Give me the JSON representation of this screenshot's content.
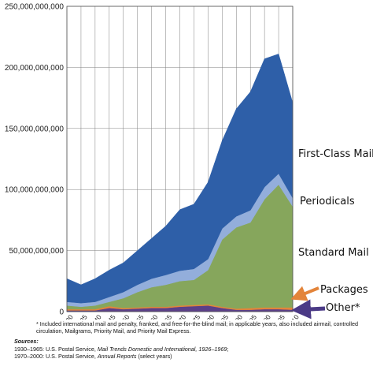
{
  "chart_data": {
    "type": "area",
    "stacked": true,
    "x": [
      1930,
      1935,
      1940,
      1945,
      1950,
      1955,
      1960,
      1965,
      1970,
      1975,
      1980,
      1985,
      1990,
      1995,
      2000,
      2005,
      2010
    ],
    "ylim": [
      0,
      250000000000
    ],
    "yticks": [
      "0",
      "50,000,000,000",
      "100,000,000,000",
      "150,000,000,000",
      "200,000,000,000",
      "250,000,000,000"
    ],
    "yticks_values": [
      0,
      50000000000,
      100000000000,
      150000000000,
      200000000000,
      250000000000
    ],
    "grid": true,
    "series": [
      {
        "name": "Other*",
        "color": "#5b3f88",
        "values": [
          1000000000,
          1000000000,
          1000000000,
          3000000000,
          2000000000,
          2500000000,
          3000000000,
          3000000000,
          4000000000,
          4500000000,
          5000000000,
          3000000000,
          1500000000,
          1500000000,
          2000000000,
          2000000000,
          1500000000
        ]
      },
      {
        "name": "Packages",
        "color": "#e3843a",
        "values": [
          1000000000,
          1000000000,
          1000000000,
          1500000000,
          1000000000,
          1000000000,
          1000000000,
          1000000000,
          1000000000,
          1000000000,
          1000000000,
          1000000000,
          1000000000,
          1500000000,
          1500000000,
          1500000000,
          2000000000
        ]
      },
      {
        "name": "Standard Mail",
        "color": "#86a65c",
        "values": [
          3000000000,
          2000000000,
          3000000000,
          3500000000,
          8000000000,
          12500000000,
          16000000000,
          18000000000,
          20000000000,
          20500000000,
          28000000000,
          55000000000,
          66500000000,
          70000000000,
          88500000000,
          100500000000,
          82500000000
        ]
      },
      {
        "name": "Periodicals",
        "color": "#93aedb",
        "values": [
          3000000000,
          3000000000,
          3000000000,
          4000000000,
          5000000000,
          6000000000,
          7000000000,
          8000000000,
          8500000000,
          9000000000,
          9000000000,
          9000000000,
          9000000000,
          10000000000,
          10000000000,
          9000000000,
          7000000000
        ]
      },
      {
        "name": "First-Class Mail",
        "color": "#2e5fa8",
        "values": [
          19000000000,
          15000000000,
          19000000000,
          22000000000,
          24000000000,
          28000000000,
          33000000000,
          40000000000,
          50000000000,
          53000000000,
          63000000000,
          72000000000,
          88000000000,
          97000000000,
          105000000000,
          98000000000,
          78000000000
        ]
      }
    ]
  },
  "legend_labels": {
    "first_class": "First-Class Mail",
    "periodicals": "Periodicals",
    "standard": "Standard Mail",
    "packages": "Packages",
    "other": "Other*"
  },
  "colors": {
    "packages_arrow": "#e3843a",
    "other_arrow": "#4b3a86",
    "plot_background": "#ffffff",
    "grid": "#7f7f7f"
  },
  "notes": {
    "footnote": "* Included international mail and penalty, franked, and free-for-the-blind mail; in applicable years, also included airmail, controlled circulation, Mailgrams, Priority Mail, and Priority Mail Express.",
    "sources_title": "Sources:",
    "source1_prefix": "1930–1965: U.S. Postal Service,",
    "source1_title": "Mail Trends Domestic and International, 1926–1969",
    "source1_suffix": ";",
    "source2_prefix": "1970–2000: U.S. Postal Service,",
    "source2_title": "Annual Reports",
    "source2_suffix": "(select years)"
  }
}
